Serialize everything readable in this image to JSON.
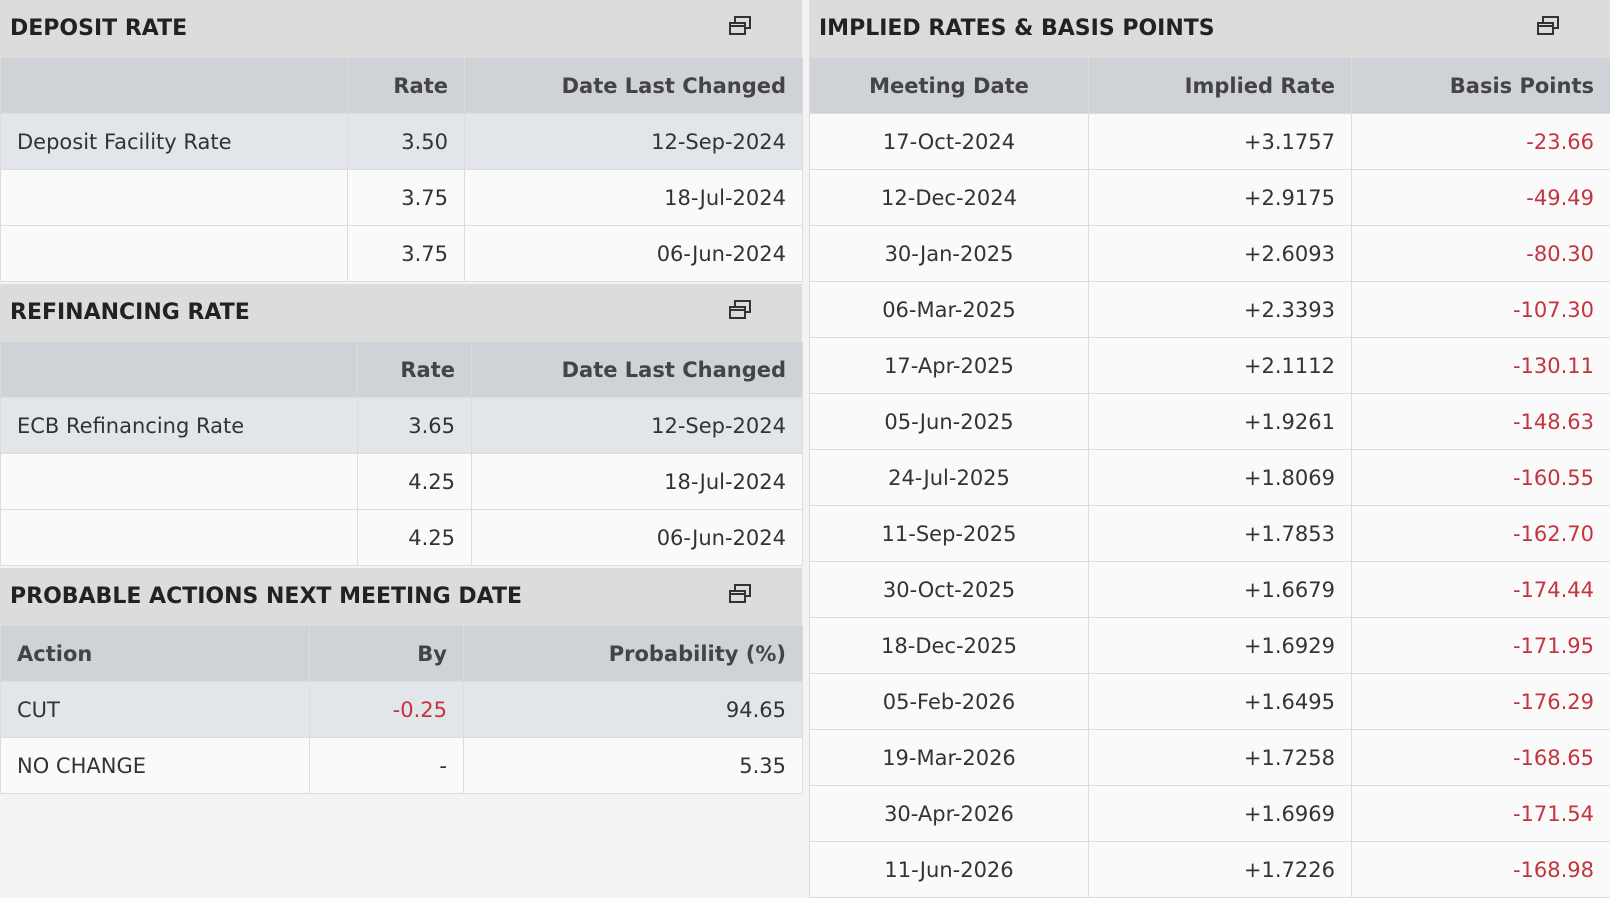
{
  "deposit_rate": {
    "title": "DEPOSIT RATE",
    "columns": [
      null,
      "Rate",
      "Date Last Changed"
    ],
    "rows": [
      [
        "Deposit Facility Rate",
        "3.50",
        "12-Sep-2024"
      ],
      [
        null,
        "3.75",
        "18-Jul-2024"
      ],
      [
        null,
        "3.75",
        "06-Jun-2024"
      ]
    ]
  },
  "refinancing_rate": {
    "title": "REFINANCING RATE",
    "columns": [
      null,
      "Rate",
      "Date Last Changed"
    ],
    "rows": [
      [
        "ECB Refinancing Rate",
        "3.65",
        "12-Sep-2024"
      ],
      [
        null,
        "4.25",
        "18-Jul-2024"
      ],
      [
        null,
        "4.25",
        "06-Jun-2024"
      ]
    ]
  },
  "probable_actions": {
    "title": "PROBABLE ACTIONS NEXT MEETING DATE",
    "columns": [
      "Action",
      "By",
      "Probability (%)"
    ],
    "rows": [
      [
        "CUT",
        "-0.25",
        "94.65"
      ],
      [
        "NO CHANGE",
        "-",
        "5.35"
      ]
    ]
  },
  "implied_rates": {
    "title": "IMPLIED RATES & BASIS POINTS",
    "columns": [
      "Meeting Date",
      "Implied Rate",
      "Basis Points"
    ],
    "rows": [
      [
        "17-Oct-2024",
        "+3.1757",
        "-23.66"
      ],
      [
        "12-Dec-2024",
        "+2.9175",
        "-49.49"
      ],
      [
        "30-Jan-2025",
        "+2.6093",
        "-80.30"
      ],
      [
        "06-Mar-2025",
        "+2.3393",
        "-107.30"
      ],
      [
        "17-Apr-2025",
        "+2.1112",
        "-130.11"
      ],
      [
        "05-Jun-2025",
        "+1.9261",
        "-148.63"
      ],
      [
        "24-Jul-2025",
        "+1.8069",
        "-160.55"
      ],
      [
        "11-Sep-2025",
        "+1.7853",
        "-162.70"
      ],
      [
        "30-Oct-2025",
        "+1.6679",
        "-174.44"
      ],
      [
        "18-Dec-2025",
        "+1.6929",
        "-171.95"
      ],
      [
        "05-Feb-2026",
        "+1.6495",
        "-176.29"
      ],
      [
        "19-Mar-2026",
        "+1.7258",
        "-168.65"
      ],
      [
        "30-Apr-2026",
        "+1.6969",
        "-171.54"
      ],
      [
        "11-Jun-2026",
        "+1.7226",
        "-168.98"
      ]
    ]
  }
}
